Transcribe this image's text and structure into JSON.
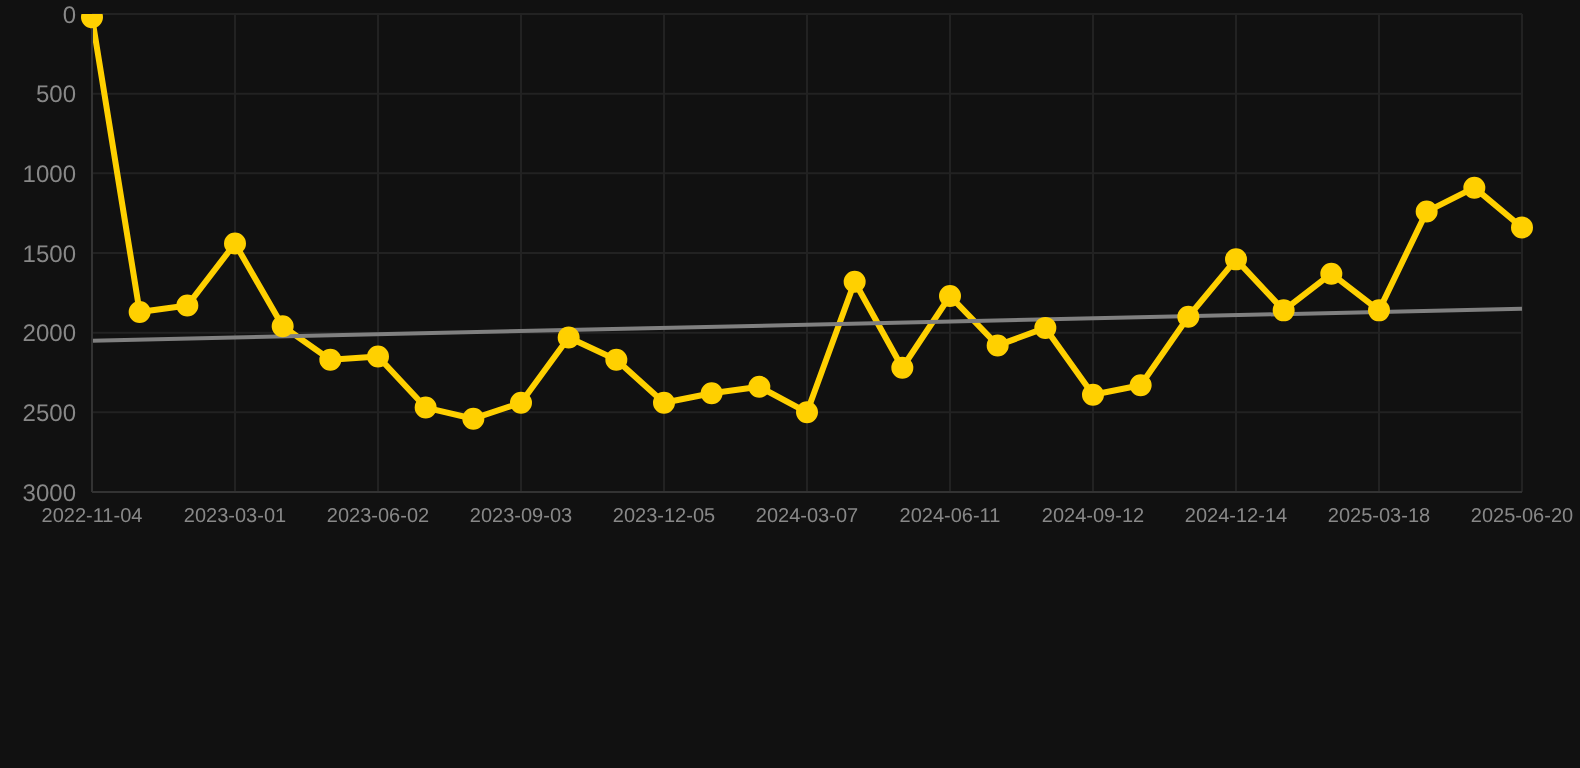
{
  "chart_data": {
    "type": "line",
    "categories": [
      "2022-11-04",
      null,
      null,
      "2023-03-01",
      null,
      null,
      "2023-06-02",
      null,
      null,
      "2023-09-03",
      null,
      null,
      "2023-12-05",
      null,
      null,
      "2024-03-07",
      null,
      null,
      "2024-06-11",
      null,
      null,
      "2024-09-12",
      null,
      null,
      "2024-12-14",
      null,
      null,
      "2025-03-18",
      null,
      null,
      "2025-06-20"
    ],
    "series": [
      {
        "color": "#ffd000",
        "marker": "circle",
        "values": [
          20,
          1870,
          1830,
          1440,
          1960,
          2170,
          2150,
          2470,
          2540,
          2440,
          2030,
          2170,
          2440,
          2380,
          2340,
          2500,
          1680,
          2220,
          1770,
          2080,
          1970,
          2390,
          2330,
          1900,
          1540,
          1860,
          1630,
          1860,
          1240,
          1090,
          1340
        ]
      },
      {
        "type": "line",
        "color": "#808080",
        "marker": "none",
        "values": [
          2050,
          null,
          null,
          null,
          null,
          null,
          null,
          null,
          null,
          null,
          null,
          null,
          null,
          null,
          null,
          null,
          null,
          null,
          null,
          null,
          null,
          null,
          null,
          null,
          null,
          null,
          null,
          null,
          null,
          null,
          1850
        ]
      }
    ],
    "ylim": [
      3000,
      0
    ],
    "yticks": [
      0,
      500,
      1000,
      1500,
      2000,
      2500,
      3000
    ],
    "grid": true
  }
}
